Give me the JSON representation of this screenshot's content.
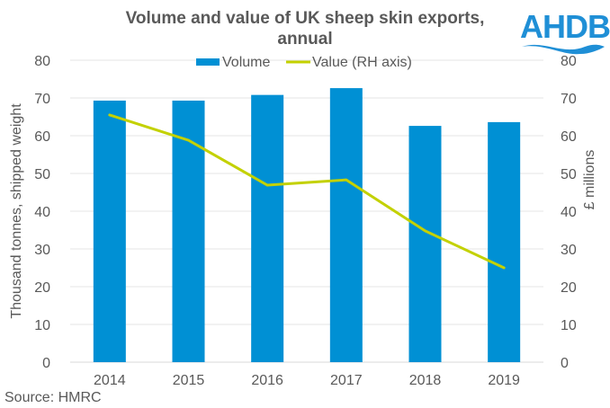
{
  "chart_data": {
    "type": "bar",
    "title_lines": [
      "Volume and value of UK sheep skin exports,",
      "annual"
    ],
    "categories": [
      "2014",
      "2015",
      "2016",
      "2017",
      "2018",
      "2019"
    ],
    "series": [
      {
        "name": "Volume",
        "type": "bar",
        "axis": "left",
        "color": "#0090d4",
        "values": [
          69.3,
          69.3,
          70.8,
          72.6,
          62.6,
          63.6
        ]
      },
      {
        "name": "Value (RH axis)",
        "type": "line",
        "axis": "right",
        "color": "#c3d100",
        "values": [
          65.5,
          58.8,
          46.9,
          48.3,
          34.8,
          25.0
        ]
      }
    ],
    "ylabel": "Thousand tonnes, shipped weight",
    "y2label": "£ millions",
    "ylim": [
      0,
      80
    ],
    "y2lim": [
      0,
      80
    ],
    "yticks": [
      "0",
      "10",
      "20",
      "30",
      "40",
      "50",
      "60",
      "70",
      "80"
    ],
    "y2ticks": [
      "0",
      "10",
      "20",
      "30",
      "40",
      "50",
      "60",
      "70",
      "80"
    ],
    "grid": true,
    "legend_position": "top-center",
    "source": "Source: HMRC"
  },
  "logo": {
    "text": "AHDB",
    "color": "#1f8fd6"
  }
}
